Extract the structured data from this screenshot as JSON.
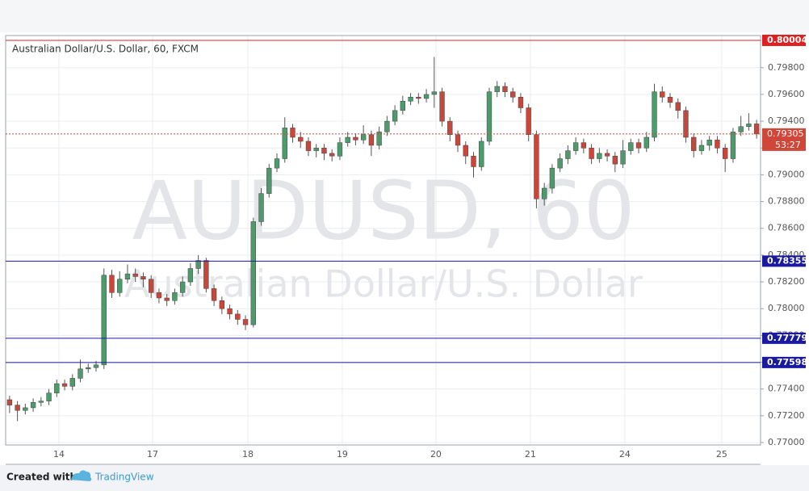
{
  "chart_data": {
    "type": "candlestick",
    "title": "Australian Dollar/U.S. Dollar, 60, FXCM",
    "watermark": "AUDUSD, 60",
    "watermark_subtitle": "Australian Dollar/U.S. Dollar",
    "up_color": "#4d9a6a",
    "down_color": "#c9473a",
    "open": [
      0.7732,
      0.7728,
      0.7724,
      0.7726,
      0.773,
      0.7731,
      0.7737,
      0.7744,
      0.7742,
      0.7748,
      0.7755,
      0.7756,
      0.7758,
      0.7825,
      0.7812,
      0.7822,
      0.7826,
      0.7824,
      0.7822,
      0.7812,
      0.7808,
      0.7806,
      0.7812,
      0.782,
      0.783,
      0.7836,
      0.7815,
      0.7806,
      0.78,
      0.7796,
      0.7792,
      0.7788,
      0.7865,
      0.7886,
      0.7905,
      0.7912,
      0.7935,
      0.7928,
      0.7925,
      0.7918,
      0.792,
      0.7916,
      0.7914,
      0.7924,
      0.7928,
      0.7926,
      0.793,
      0.7922,
      0.7932,
      0.794,
      0.7948,
      0.7955,
      0.7958,
      0.7957,
      0.796,
      0.7962,
      0.794,
      0.793,
      0.7922,
      0.7914,
      0.7906,
      0.7925,
      0.7962,
      0.7966,
      0.7962,
      0.7958,
      0.795,
      0.793,
      0.7882,
      0.789,
      0.7905,
      0.7912,
      0.7918,
      0.7924,
      0.792,
      0.7912,
      0.7916,
      0.7914,
      0.7908,
      0.7918,
      0.7924,
      0.792,
      0.7928,
      0.7962,
      0.7958,
      0.7954,
      0.7948,
      0.7928,
      0.7918,
      0.7922,
      0.7926,
      0.792,
      0.7912,
      0.7932,
      0.7936,
      0.7938
    ],
    "high": [
      0.7735,
      0.7731,
      0.7729,
      0.7733,
      0.7734,
      0.774,
      0.7747,
      0.7747,
      0.7751,
      0.7762,
      0.7759,
      0.7761,
      0.783,
      0.7829,
      0.7828,
      0.7833,
      0.783,
      0.7827,
      0.7825,
      0.7815,
      0.7811,
      0.7815,
      0.7824,
      0.7834,
      0.784,
      0.7838,
      0.7818,
      0.7809,
      0.7803,
      0.7799,
      0.7795,
      0.7868,
      0.789,
      0.7908,
      0.7916,
      0.7943,
      0.7938,
      0.7932,
      0.7928,
      0.7923,
      0.7923,
      0.7919,
      0.7928,
      0.7932,
      0.7931,
      0.7937,
      0.7933,
      0.7936,
      0.7944,
      0.7952,
      0.7959,
      0.7961,
      0.7961,
      0.7964,
      0.7988,
      0.7965,
      0.7943,
      0.7933,
      0.7925,
      0.7917,
      0.7928,
      0.7965,
      0.797,
      0.7969,
      0.7965,
      0.7961,
      0.7953,
      0.7933,
      0.7894,
      0.7908,
      0.7916,
      0.7922,
      0.7928,
      0.7927,
      0.7923,
      0.792,
      0.7919,
      0.7917,
      0.7926,
      0.7927,
      0.7927,
      0.7932,
      0.7968,
      0.7966,
      0.7961,
      0.7957,
      0.7951,
      0.7931,
      0.7926,
      0.7929,
      0.7929,
      0.7923,
      0.7935,
      0.7944,
      0.7946,
      0.7941
    ],
    "low": [
      0.7722,
      0.7716,
      0.7721,
      0.7723,
      0.7727,
      0.7728,
      0.7734,
      0.7739,
      0.7739,
      0.7745,
      0.7752,
      0.7753,
      0.7755,
      0.7808,
      0.7809,
      0.7819,
      0.782,
      0.7816,
      0.7808,
      0.7804,
      0.7802,
      0.7803,
      0.7809,
      0.7817,
      0.7826,
      0.7812,
      0.7802,
      0.7796,
      0.7792,
      0.7788,
      0.7784,
      0.7786,
      0.7862,
      0.7883,
      0.7902,
      0.7909,
      0.7924,
      0.792,
      0.7914,
      0.7913,
      0.7911,
      0.791,
      0.7911,
      0.7921,
      0.7922,
      0.7923,
      0.7914,
      0.7919,
      0.7929,
      0.7937,
      0.7945,
      0.7952,
      0.7953,
      0.7954,
      0.795,
      0.7936,
      0.7925,
      0.7917,
      0.7908,
      0.7898,
      0.7903,
      0.7922,
      0.7958,
      0.7958,
      0.7954,
      0.7946,
      0.7925,
      0.7875,
      0.7877,
      0.7886,
      0.7902,
      0.7908,
      0.7915,
      0.7916,
      0.7908,
      0.7909,
      0.791,
      0.7902,
      0.7905,
      0.7915,
      0.7916,
      0.7917,
      0.7925,
      0.7954,
      0.795,
      0.7942,
      0.7924,
      0.7913,
      0.7915,
      0.7918,
      0.7916,
      0.7902,
      0.7909,
      0.7929,
      0.7933,
      0.7927
    ],
    "close": [
      0.7728,
      0.7724,
      0.7726,
      0.773,
      0.7731,
      0.7737,
      0.7744,
      0.7742,
      0.7748,
      0.7755,
      0.7756,
      0.7758,
      0.7825,
      0.7812,
      0.7822,
      0.7826,
      0.7824,
      0.7822,
      0.7812,
      0.7808,
      0.7806,
      0.7812,
      0.782,
      0.783,
      0.7836,
      0.7815,
      0.7806,
      0.78,
      0.7796,
      0.7792,
      0.7788,
      0.7865,
      0.7886,
      0.7905,
      0.7912,
      0.7935,
      0.7928,
      0.7925,
      0.7918,
      0.792,
      0.7916,
      0.7914,
      0.7924,
      0.7928,
      0.7926,
      0.793,
      0.7922,
      0.7932,
      0.794,
      0.7948,
      0.7955,
      0.7958,
      0.7957,
      0.796,
      0.7962,
      0.794,
      0.793,
      0.7922,
      0.7914,
      0.7906,
      0.7925,
      0.7962,
      0.7966,
      0.7962,
      0.7958,
      0.795,
      0.793,
      0.7882,
      0.789,
      0.7905,
      0.7912,
      0.7918,
      0.7924,
      0.792,
      0.7912,
      0.7916,
      0.7914,
      0.7908,
      0.7918,
      0.7924,
      0.792,
      0.7928,
      0.7962,
      0.7958,
      0.7954,
      0.7948,
      0.7928,
      0.7918,
      0.7922,
      0.7926,
      0.792,
      0.7912,
      0.7932,
      0.7936,
      0.7938,
      0.79305
    ],
    "xlim": [
      0,
      96
    ],
    "xticks": [
      {
        "value": 6.78,
        "label": "14"
      },
      {
        "value": 18.69,
        "label": "17"
      },
      {
        "value": 30.8,
        "label": "18"
      },
      {
        "value": 42.81,
        "label": "19"
      },
      {
        "value": 54.72,
        "label": "20"
      },
      {
        "value": 66.73,
        "label": "21"
      },
      {
        "value": 78.74,
        "label": "24"
      },
      {
        "value": 91.06,
        "label": "25"
      }
    ],
    "ylim": [
      0.76982,
      0.8004
    ],
    "yticks": [
      {
        "value": 0.77,
        "label": "0.77000"
      },
      {
        "value": 0.772,
        "label": "0.77200"
      },
      {
        "value": 0.774,
        "label": "0.77400"
      },
      {
        "value": 0.776,
        "label": "0.77600"
      },
      {
        "value": 0.778,
        "label": "0.77800"
      },
      {
        "value": 0.78,
        "label": "0.78000"
      },
      {
        "value": 0.782,
        "label": "0.78200"
      },
      {
        "value": 0.784,
        "label": "0.78400"
      },
      {
        "value": 0.786,
        "label": "0.78600"
      },
      {
        "value": 0.788,
        "label": "0.78800"
      },
      {
        "value": 0.79,
        "label": "0.79000"
      },
      {
        "value": 0.792,
        "label": "0.79200"
      },
      {
        "value": 0.794,
        "label": "0.79400"
      },
      {
        "value": 0.796,
        "label": "0.79600"
      },
      {
        "value": 0.798,
        "label": "0.79800"
      }
    ],
    "grid": true,
    "levels": [
      {
        "value": 0.80004,
        "color": "#e02020"
      },
      {
        "value": 0.78355,
        "color": "#1a1aa0"
      },
      {
        "value": 0.77779,
        "color": "#1a1aa0"
      },
      {
        "value": 0.77598,
        "color": "#1a1aa0"
      }
    ],
    "current": {
      "value": 0.79305,
      "countdown": "53:27",
      "color": "#d0473a"
    }
  },
  "footer": {
    "created_with": "Created with",
    "brand": "TradingView"
  }
}
